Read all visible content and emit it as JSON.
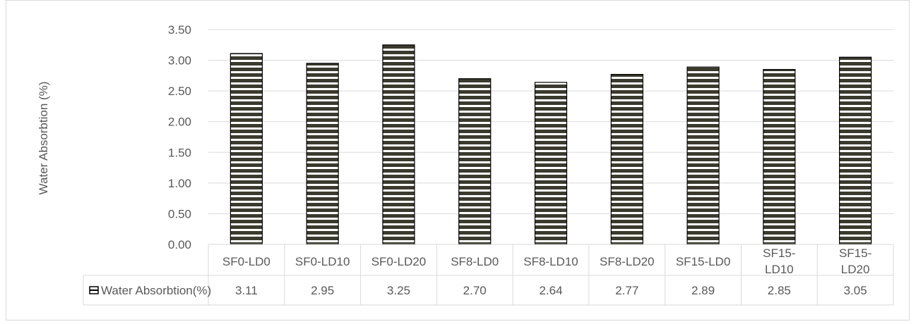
{
  "chart_data": {
    "type": "bar",
    "ylabel": "Water Absorbtion (%)",
    "xlabel": "",
    "ylim": [
      0,
      3.5
    ],
    "yticks": [
      "0.00",
      "0.50",
      "1.00",
      "1.50",
      "2.00",
      "2.50",
      "3.00",
      "3.50"
    ],
    "grid": true,
    "categories": [
      [
        "SF0-LD0"
      ],
      [
        "SF0-LD10"
      ],
      [
        "SF0-LD20"
      ],
      [
        "SF8-LD0"
      ],
      [
        "SF8-LD10"
      ],
      [
        "SF8-LD20"
      ],
      [
        "SF15-LD0"
      ],
      [
        "SF15-",
        "LD10"
      ],
      [
        "SF15-",
        "LD20"
      ]
    ],
    "series": [
      {
        "name": "Water Absorbtion(%)",
        "values": [
          3.11,
          2.95,
          3.25,
          2.7,
          2.64,
          2.77,
          2.89,
          2.85,
          3.05
        ],
        "value_labels": [
          "3.11",
          "2.95",
          "3.25",
          "2.70",
          "2.64",
          "2.77",
          "2.89",
          "2.85",
          "3.05"
        ],
        "pattern": "horizontal-stripes",
        "color": "#3b3a2e"
      }
    ],
    "legend": "data-table"
  }
}
